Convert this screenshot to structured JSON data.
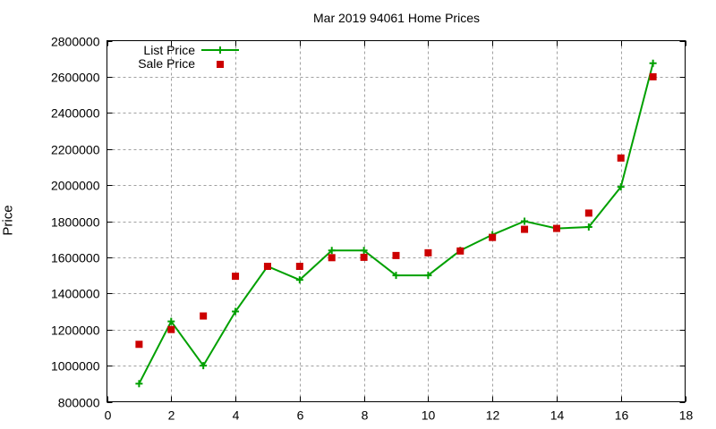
{
  "chart_data": {
    "type": "line",
    "title": "Mar 2019 94061 Home Prices",
    "xlabel": "",
    "ylabel": "Price",
    "xlim": [
      0,
      18
    ],
    "ylim": [
      800000,
      2800000
    ],
    "xticks": [
      0,
      2,
      4,
      6,
      8,
      10,
      12,
      14,
      16,
      18
    ],
    "yticks": [
      800000,
      1000000,
      1200000,
      1400000,
      1600000,
      1800000,
      2000000,
      2200000,
      2400000,
      2600000,
      2800000
    ],
    "grid": true,
    "legend_position": "top-left",
    "x": [
      1,
      2,
      3,
      4,
      5,
      6,
      7,
      8,
      9,
      10,
      11,
      12,
      13,
      14,
      15,
      16,
      17
    ],
    "series": [
      {
        "name": "List Price",
        "style": "linespoints",
        "color": "#00a000",
        "marker": "plus",
        "values": [
          900000,
          1245000,
          1000000,
          1300000,
          1550000,
          1475000,
          1638000,
          1638000,
          1500000,
          1500000,
          1638000,
          1725000,
          1800000,
          1760000,
          1768000,
          1990000,
          2675000
        ]
      },
      {
        "name": "Sale Price",
        "style": "points",
        "color": "#cc0000",
        "marker": "square",
        "values": [
          1118000,
          1200000,
          1275000,
          1495000,
          1550000,
          1550000,
          1598000,
          1600000,
          1610000,
          1625000,
          1635000,
          1710000,
          1755000,
          1760000,
          1845000,
          2150000,
          2600000
        ]
      }
    ]
  }
}
